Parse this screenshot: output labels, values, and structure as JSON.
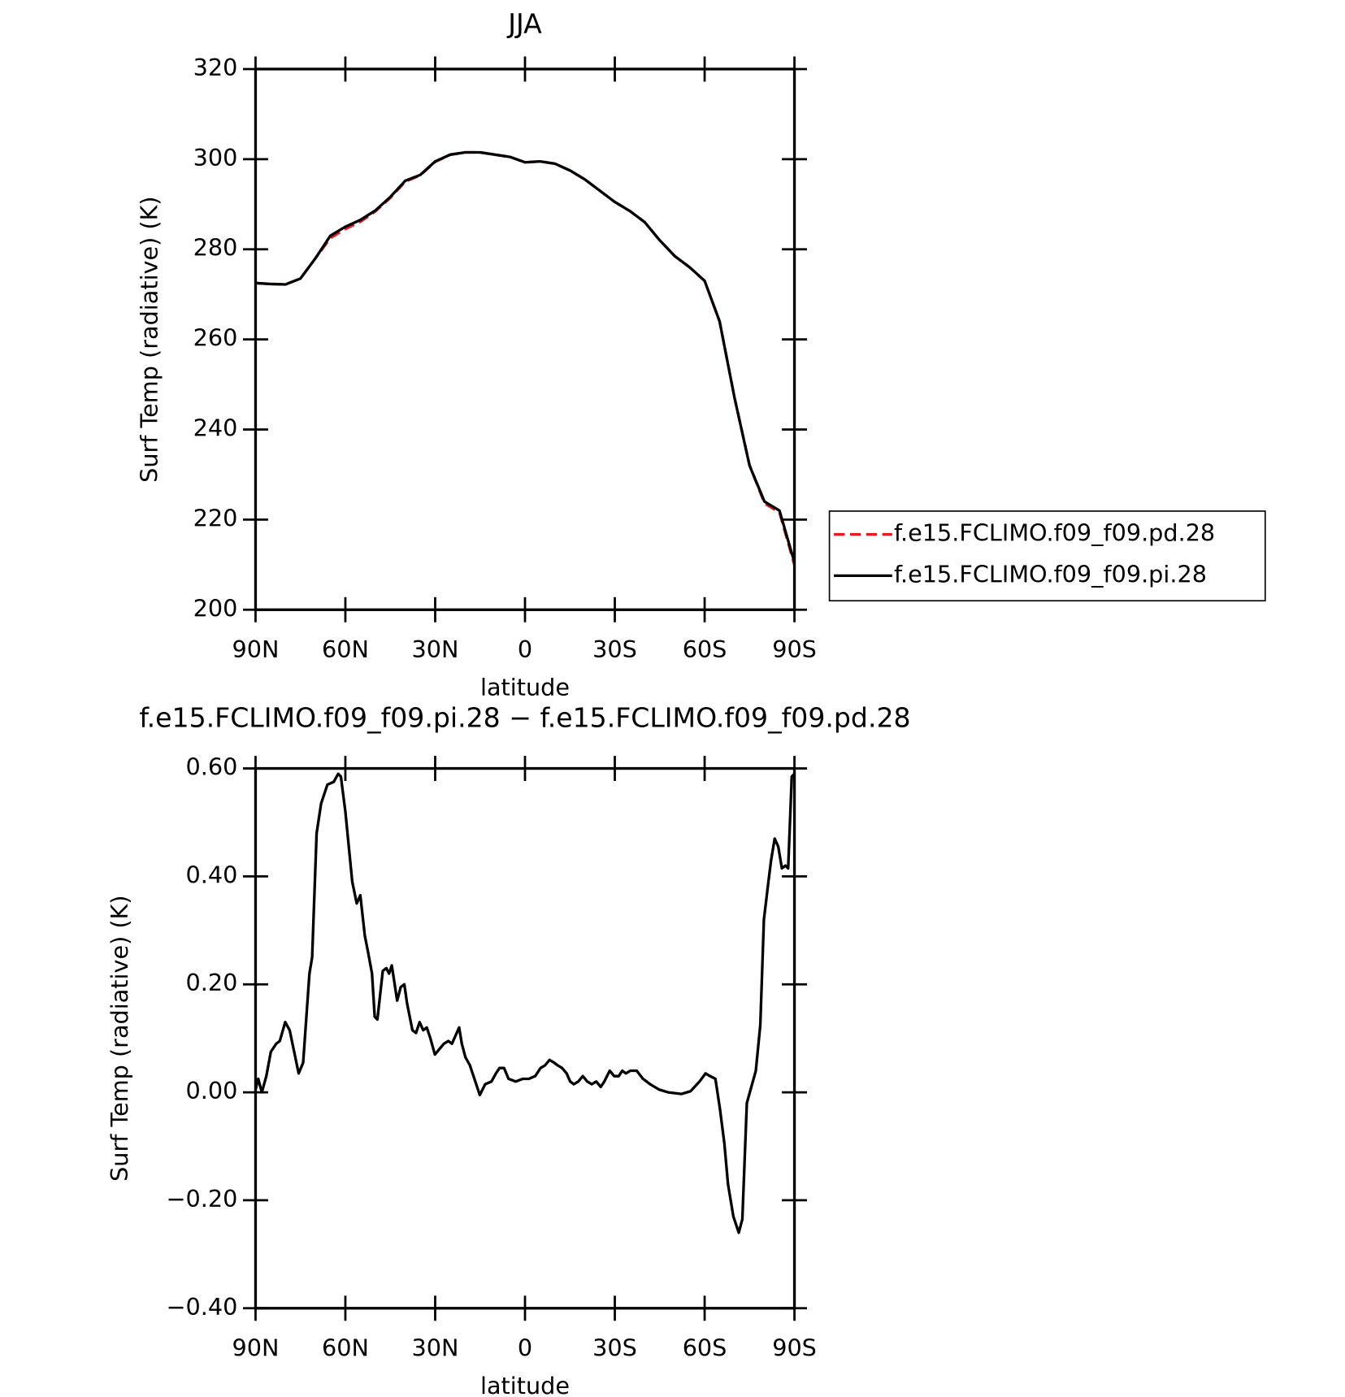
{
  "chart_data": [
    {
      "type": "line",
      "title": "JJA",
      "x_label": "latitude",
      "y_label": "Surf Temp (radiative) (K)",
      "x": [
        90,
        85,
        80,
        75,
        70,
        65,
        60,
        55,
        50,
        45,
        40,
        35,
        30,
        25,
        20,
        15,
        10,
        5,
        0,
        -5,
        -10,
        -15,
        -20,
        -25,
        -30,
        -35,
        -40,
        -45,
        -50,
        -55,
        -60,
        -65,
        -70,
        -75,
        -80,
        -85,
        -90
      ],
      "series": [
        {
          "name": "f.e15.FCLIMO.f09_f09.pd.28",
          "color": "#e41a1c",
          "dash": "dashed",
          "values": [
            272.5,
            272.3,
            272.2,
            273.5,
            278,
            282.5,
            284.5,
            286.1,
            288.4,
            291.4,
            295,
            296.4,
            299.4,
            301,
            301.5,
            301.5,
            301,
            300.5,
            299.3,
            299.5,
            299,
            297.5,
            295.5,
            293,
            290.5,
            288.5,
            286,
            282,
            278.5,
            276,
            273,
            264,
            247,
            232.1,
            223.6,
            221.6,
            209.9
          ]
        },
        {
          "name": "f.e15.FCLIMO.f09_f09.pi.28",
          "color": "#000000",
          "dash": "solid",
          "values": [
            272.5,
            272.3,
            272.2,
            273.5,
            278,
            283,
            285,
            286.5,
            288.6,
            291.6,
            295.2,
            296.5,
            299.5,
            301,
            301.5,
            301.5,
            301,
            300.5,
            299.3,
            299.5,
            299,
            297.5,
            295.5,
            293,
            290.5,
            288.5,
            286,
            282,
            278.5,
            276,
            273,
            264,
            247,
            232,
            224,
            222,
            210.5
          ]
        }
      ],
      "xlim": [
        90,
        -90
      ],
      "xticks": [
        {
          "value": 90,
          "label": "90N"
        },
        {
          "value": 60,
          "label": "60N"
        },
        {
          "value": 30,
          "label": "30N"
        },
        0,
        {
          "value": -30,
          "label": "30S"
        },
        {
          "value": -60,
          "label": "60S"
        },
        {
          "value": -90,
          "label": "90S"
        }
      ],
      "ylim": [
        200,
        320
      ],
      "yticks": [
        200,
        220,
        240,
        260,
        280,
        300,
        320
      ],
      "legend": "right"
    },
    {
      "type": "line",
      "title": "f.e15.FCLIMO.f09_f09.pi.28 − f.e15.FCLIMO.f09_f09.pd.28",
      "x_label": "latitude",
      "y_label": "Surf Temp (radiative) (K)",
      "x": [
        90,
        89.1,
        87.9,
        86.4,
        84.9,
        83.1,
        81.9,
        80.1,
        78.6,
        75.6,
        74.1,
        72.0,
        71.1,
        69.6,
        68.1,
        66.0,
        63.9,
        62.4,
        61.5,
        60.0,
        57.7,
        56.2,
        55.0,
        53.5,
        52.6,
        51.1,
        50.2,
        49.3,
        47.5,
        46.3,
        45.4,
        44.5,
        42.7,
        41.5,
        40.3,
        39.4,
        37.6,
        36.4,
        35.2,
        34.0,
        32.8,
        31.6,
        30.1,
        28.6,
        27.1,
        25.6,
        24.4,
        23.2,
        22.0,
        21.1,
        19.9,
        18.4,
        15.1,
        13.3,
        11.2,
        9.7,
        8.5,
        7.0,
        5.5,
        3.1,
        0.7,
        -1.3,
        -3.4,
        -5.2,
        -6.7,
        -8.2,
        -9.7,
        -10.9,
        -12.4,
        -13.9,
        -15.1,
        -16.3,
        -17.8,
        -19.3,
        -20.8,
        -22.3,
        -23.8,
        -25.3,
        -26.5,
        -28.3,
        -29.8,
        -31.3,
        -32.5,
        -33.7,
        -35.2,
        -37.3,
        -39.4,
        -41.8,
        -44.8,
        -47.8,
        -52.3,
        -55.3,
        -58.3,
        -60.3,
        -61.8,
        -63.6,
        -65.1,
        -66.6,
        -67.8,
        -69.6,
        -71.4,
        -72.6,
        -74.1,
        -75.6,
        -77.1,
        -78.6,
        -79.8,
        -81.3,
        -82.2,
        -83.4,
        -84.6,
        -85.8,
        -87.0,
        -87.9,
        -89.1,
        -90
      ],
      "series": [
        {
          "color": "#000000",
          "dash": "solid",
          "values": [
            0.005,
            0.025,
            0.0,
            0.03,
            0.075,
            0.09,
            0.095,
            0.13,
            0.115,
            0.035,
            0.055,
            0.22,
            0.25,
            0.48,
            0.535,
            0.57,
            0.575,
            0.59,
            0.585,
            0.52,
            0.39,
            0.35,
            0.365,
            0.29,
            0.265,
            0.22,
            0.14,
            0.135,
            0.225,
            0.23,
            0.22,
            0.235,
            0.17,
            0.195,
            0.2,
            0.165,
            0.115,
            0.11,
            0.13,
            0.115,
            0.12,
            0.1,
            0.07,
            0.08,
            0.09,
            0.095,
            0.09,
            0.105,
            0.12,
            0.09,
            0.065,
            0.05,
            -0.005,
            0.015,
            0.02,
            0.035,
            0.045,
            0.045,
            0.025,
            0.02,
            0.025,
            0.025,
            0.03,
            0.045,
            0.05,
            0.06,
            0.055,
            0.05,
            0.045,
            0.035,
            0.02,
            0.015,
            0.02,
            0.03,
            0.02,
            0.015,
            0.02,
            0.01,
            0.02,
            0.04,
            0.03,
            0.03,
            0.04,
            0.035,
            0.04,
            0.04,
            0.025,
            0.015,
            0.005,
            0.0,
            -0.003,
            0.002,
            0.02,
            0.035,
            0.03,
            0.025,
            -0.03,
            -0.095,
            -0.17,
            -0.23,
            -0.26,
            -0.235,
            -0.02,
            0.01,
            0.04,
            0.125,
            0.32,
            0.39,
            0.43,
            0.47,
            0.455,
            0.415,
            0.42,
            0.415,
            0.585,
            0.59
          ]
        }
      ],
      "xlim": [
        90,
        -90
      ],
      "xticks": [
        {
          "value": 90,
          "label": "90N"
        },
        {
          "value": 60,
          "label": "60N"
        },
        {
          "value": 30,
          "label": "30N"
        },
        0,
        {
          "value": -30,
          "label": "30S"
        },
        {
          "value": -60,
          "label": "60S"
        },
        {
          "value": -90,
          "label": "90S"
        }
      ],
      "ylim": [
        -0.4,
        0.6
      ],
      "yticks": [
        {
          "value": -0.4,
          "label": "−0.40"
        },
        {
          "value": -0.2,
          "label": "−0.20"
        },
        {
          "value": 0,
          "label": "0.00"
        },
        {
          "value": 0.2,
          "label": "0.20"
        },
        {
          "value": 0.4,
          "label": "0.40"
        },
        {
          "value": 0.6,
          "label": "0.60"
        }
      ]
    }
  ]
}
